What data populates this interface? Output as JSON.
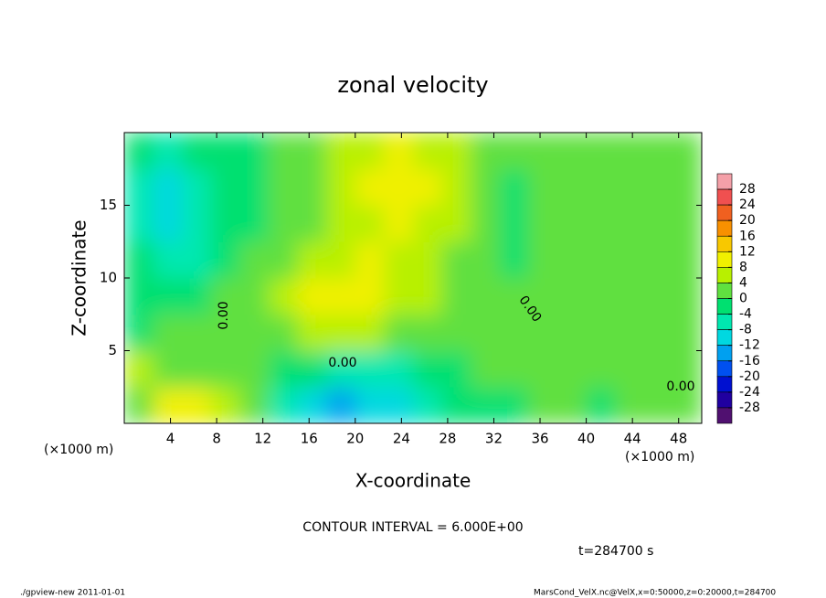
{
  "chart_data": {
    "type": "heatmap",
    "title": "zonal velocity",
    "x_label": "X-coordinate",
    "y_label": "Z-coordinate",
    "x_unit": "(×1000 m)",
    "xlim": [
      0,
      50
    ],
    "ylim": [
      0,
      20
    ],
    "xticks": [
      4,
      8,
      12,
      16,
      20,
      24,
      28,
      32,
      36,
      40,
      44,
      48
    ],
    "yticks": [
      5,
      10,
      15
    ],
    "x": [
      1.25,
      3.75,
      6.25,
      8.75,
      11.25,
      13.75,
      16.25,
      18.75,
      21.25,
      23.75,
      26.25,
      28.75,
      31.25,
      33.75,
      36.25,
      38.75,
      41.25,
      43.75,
      46.25,
      48.75
    ],
    "y": [
      1.25,
      3.75,
      6.25,
      8.75,
      11.25,
      13.75,
      16.25,
      18.75
    ],
    "z": [
      [
        2,
        8,
        10,
        4,
        0,
        -6,
        -10,
        -14,
        -12,
        -10,
        -6,
        -4,
        -2,
        -2,
        0,
        0,
        -2,
        0,
        2,
        2
      ],
      [
        4,
        3,
        2,
        1,
        0,
        -2,
        -4,
        -6,
        -6,
        -6,
        -4,
        -1,
        0,
        2,
        1,
        1,
        2,
        2,
        2,
        2
      ],
      [
        -1,
        0,
        1,
        1,
        2,
        3,
        4,
        5,
        4,
        2,
        2,
        2,
        1,
        3,
        2,
        1,
        2,
        2,
        1,
        0
      ],
      [
        -2,
        -4,
        -3,
        0,
        2,
        6,
        8,
        8,
        9,
        6,
        4,
        2,
        1,
        1,
        3,
        3,
        2,
        2,
        2,
        2
      ],
      [
        -4,
        -6,
        -5,
        -2,
        0,
        3,
        5,
        7,
        8,
        7,
        5,
        3,
        1,
        -2,
        2,
        3,
        3,
        2,
        2,
        2
      ],
      [
        -7,
        -10,
        -8,
        -4,
        -2,
        1,
        3,
        5,
        7,
        8,
        6,
        4,
        2,
        -2,
        1,
        2,
        3,
        3,
        2,
        0
      ],
      [
        -6,
        -9,
        -8,
        -4,
        -2,
        0,
        2,
        4,
        8,
        9,
        8,
        5,
        2,
        -1,
        0,
        2,
        3,
        3,
        2,
        1
      ],
      [
        -4,
        -5,
        -4,
        -3,
        -2,
        0,
        2,
        4,
        7,
        8,
        7,
        4,
        2,
        0,
        1,
        2,
        3,
        3,
        2,
        2
      ]
    ],
    "colorbar": {
      "ticks": [
        28,
        24,
        20,
        16,
        12,
        8,
        4,
        0,
        -4,
        -8,
        -12,
        -16,
        -20,
        -24,
        -28
      ],
      "colors": [
        "#f4a0a8",
        "#f05050",
        "#f06020",
        "#f89000",
        "#f8c800",
        "#f0f000",
        "#b8f000",
        "#60e040",
        "#00e070",
        "#00e8b0",
        "#00d8e0",
        "#00a0f0",
        "#0050f0",
        "#0010d0",
        "#2000a0",
        "#501070"
      ]
    },
    "contour_labels": [
      {
        "value": 0,
        "label": "0.00"
      },
      {
        "value": 0,
        "label": "0.00"
      },
      {
        "value": 0,
        "label": "0.00"
      },
      {
        "value": 0,
        "label": "0.00"
      }
    ],
    "contour_interval": "CONTOUR INTERVAL = 6.000E+00",
    "time_label": "t=284700 s",
    "footer_left": "./gpview-new   2011-01-01",
    "footer_right": "MarsCond_VelX.nc@VelX,x=0:50000,z=0:20000,t=284700"
  }
}
